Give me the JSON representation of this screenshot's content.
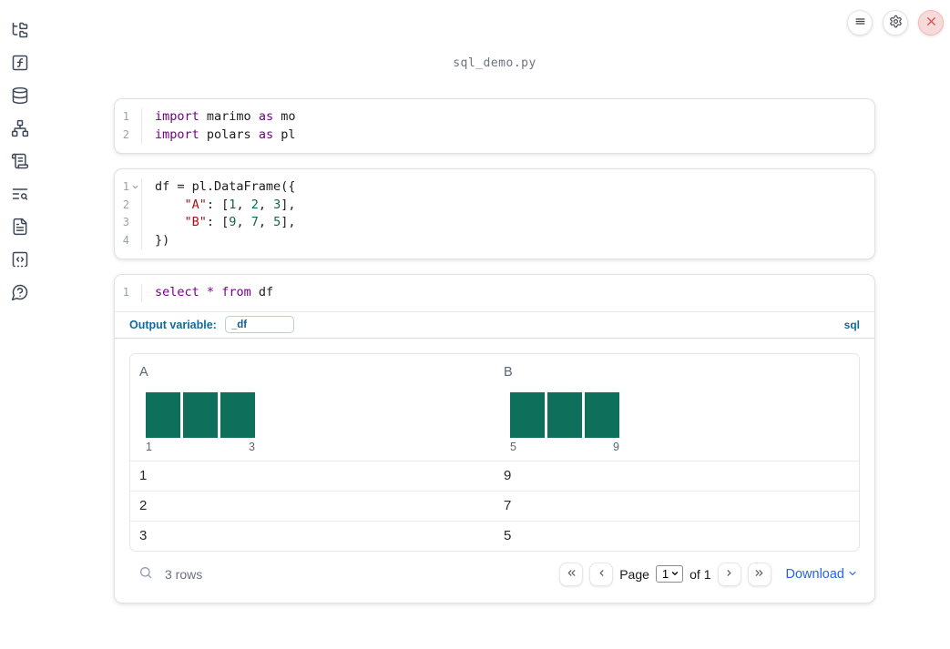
{
  "app": {
    "filename": "sql_demo.py"
  },
  "colors": {
    "keyword": "#770088",
    "string": "#aa1111",
    "number": "#116644",
    "histogram_bar": "#0e6f5b",
    "accent": "#0f6c9a",
    "link": "#2563eb"
  },
  "sidebar": {
    "items": [
      {
        "icon": "file-tree-icon",
        "panel": "file explorer"
      },
      {
        "icon": "function-square-icon",
        "panel": "variables"
      },
      {
        "icon": "database-icon",
        "panel": "data sources"
      },
      {
        "icon": "dependency-graph-icon",
        "panel": "dependencies"
      },
      {
        "icon": "scroll-icon",
        "panel": "logs"
      },
      {
        "icon": "list-search-icon",
        "panel": "outline"
      },
      {
        "icon": "document-icon",
        "panel": "documentation"
      },
      {
        "icon": "snippets-icon",
        "panel": "snippets"
      },
      {
        "icon": "help-icon",
        "panel": "help"
      }
    ]
  },
  "cells": [
    {
      "lines": [
        {
          "num": "1",
          "tokens": [
            [
              "kw",
              "import"
            ],
            [
              "pl",
              " marimo "
            ],
            [
              "kw",
              "as"
            ],
            [
              "pl",
              " mo"
            ]
          ]
        },
        {
          "num": "2",
          "tokens": [
            [
              "kw",
              "import"
            ],
            [
              "pl",
              " polars "
            ],
            [
              "kw",
              "as"
            ],
            [
              "pl",
              " pl"
            ]
          ]
        }
      ]
    },
    {
      "lines": [
        {
          "num": "1",
          "fold": true,
          "tokens": [
            [
              "pl",
              "df = pl.DataFrame({"
            ]
          ]
        },
        {
          "num": "2",
          "tokens": [
            [
              "pl",
              "    "
            ],
            [
              "str",
              "\"A\""
            ],
            [
              "pl",
              ": ["
            ],
            [
              "num",
              "1"
            ],
            [
              "pl",
              ", "
            ],
            [
              "num",
              "2"
            ],
            [
              "pl",
              ", "
            ],
            [
              "num",
              "3"
            ],
            [
              "pl",
              "],"
            ]
          ]
        },
        {
          "num": "3",
          "tokens": [
            [
              "pl",
              "    "
            ],
            [
              "str",
              "\"B\""
            ],
            [
              "pl",
              ": ["
            ],
            [
              "num",
              "9"
            ],
            [
              "pl",
              ", "
            ],
            [
              "num",
              "7"
            ],
            [
              "pl",
              ", "
            ],
            [
              "num",
              "5"
            ],
            [
              "pl",
              "],"
            ]
          ]
        },
        {
          "num": "4",
          "tokens": [
            [
              "pl",
              "})"
            ]
          ]
        }
      ]
    },
    {
      "lines": [
        {
          "num": "1",
          "tokens": [
            [
              "kw",
              "select"
            ],
            [
              "pl",
              " "
            ],
            [
              "kw",
              "*"
            ],
            [
              "pl",
              " "
            ],
            [
              "kw",
              "from"
            ],
            [
              "pl",
              " df"
            ]
          ]
        }
      ]
    }
  ],
  "sql_cell": {
    "output_variable_label": "Output variable:",
    "output_variable_value": "_df",
    "language_badge": "sql"
  },
  "table": {
    "columns": [
      {
        "name": "A",
        "histogram": {
          "bars": [
            1,
            1,
            1
          ],
          "min": "1",
          "max": "3"
        }
      },
      {
        "name": "B",
        "histogram": {
          "bars": [
            1,
            1,
            1
          ],
          "min": "5",
          "max": "9"
        }
      }
    ],
    "rows": [
      [
        "1",
        "9"
      ],
      [
        "2",
        "7"
      ],
      [
        "3",
        "5"
      ]
    ],
    "footer": {
      "row_count": "3 rows",
      "page_label": "Page",
      "page_value": "1",
      "of_label": "of 1",
      "download_label": "Download"
    }
  },
  "chart_data": [
    {
      "type": "bar",
      "title": "column A histogram",
      "x": [
        1,
        2,
        3
      ],
      "values": [
        1,
        1,
        1
      ],
      "xlabel": "A",
      "x_tick_labels": [
        "1",
        "3"
      ]
    },
    {
      "type": "bar",
      "title": "column B histogram",
      "x": [
        5,
        7,
        9
      ],
      "values": [
        1,
        1,
        1
      ],
      "xlabel": "B",
      "x_tick_labels": [
        "5",
        "9"
      ]
    }
  ]
}
